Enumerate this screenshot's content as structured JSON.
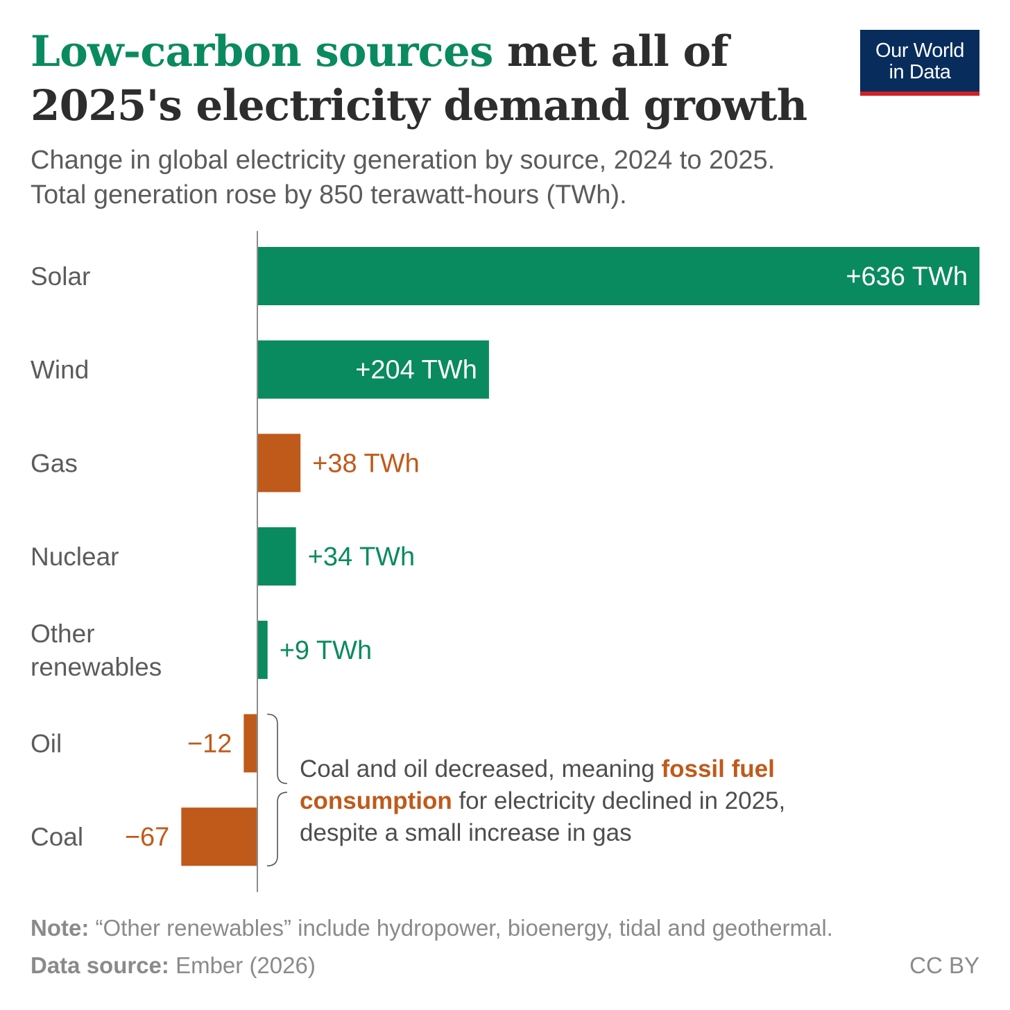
{
  "header": {
    "title_highlight": "Low-carbon sources",
    "title_rest": " met all of 2025's electricity demand growth",
    "subtitle_line1": "Change in global electricity generation by source, 2024 to 2025.",
    "subtitle_line2": "Total generation rose by 850 terawatt-hours (TWh)."
  },
  "logo": {
    "line1": "Our World",
    "line2": "in Data"
  },
  "colors": {
    "low_carbon": "#0a8a5f",
    "fossil": "#bf5a1b",
    "axis": "#8c8c8c",
    "category_text": "#5b5b5b"
  },
  "chart_data": {
    "type": "bar",
    "orientation": "horizontal",
    "categories": [
      "Solar",
      "Wind",
      "Gas",
      "Nuclear",
      "Other renewables",
      "Oil",
      "Coal"
    ],
    "category_lines": [
      [
        "Solar"
      ],
      [
        "Wind"
      ],
      [
        "Gas"
      ],
      [
        "Nuclear"
      ],
      [
        "Other",
        "renewables"
      ],
      [
        "Oil"
      ],
      [
        "Coal"
      ]
    ],
    "values": [
      636,
      204,
      38,
      34,
      9,
      -12,
      -67
    ],
    "value_labels": [
      "+636 TWh",
      "+204 TWh",
      "+38 TWh",
      "+34 TWh",
      "+9 TWh",
      "−12",
      "−67"
    ],
    "groups": [
      "low-carbon",
      "low-carbon",
      "fossil",
      "low-carbon",
      "low-carbon",
      "fossil",
      "fossil"
    ],
    "unit": "TWh",
    "xlim": [
      -70,
      636
    ],
    "grid": false,
    "legend": "none"
  },
  "annotation": {
    "text_before": "Coal and oil decreased, meaning ",
    "text_emph": "fossil fuel consumption",
    "text_after": " for electricity declined in 2025, despite a small increase in gas"
  },
  "footer": {
    "note_label": "Note:",
    "note_text": " “Other renewables” include hydropower, bioenergy, tidal and geothermal.",
    "source_label": "Data source:",
    "source_text": " Ember (2026)",
    "license": "CC BY"
  }
}
